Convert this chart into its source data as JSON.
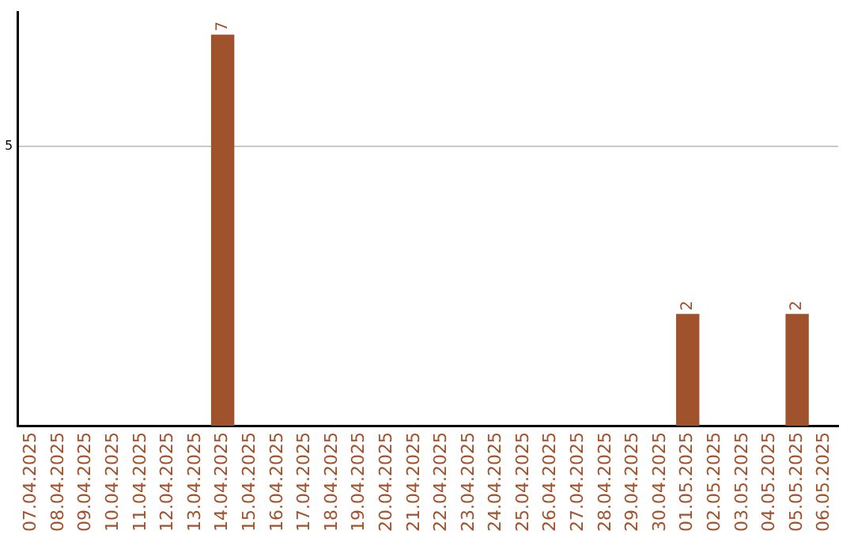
{
  "chart_data": {
    "type": "bar",
    "categories": [
      "07.04.2025",
      "08.04.2025",
      "09.04.2025",
      "10.04.2025",
      "11.04.2025",
      "12.04.2025",
      "13.04.2025",
      "14.04.2025",
      "15.04.2025",
      "16.04.2025",
      "17.04.2025",
      "18.04.2025",
      "19.04.2025",
      "20.04.2025",
      "21.04.2025",
      "22.04.2025",
      "23.04.2025",
      "24.04.2025",
      "25.04.2025",
      "26.04.2025",
      "27.04.2025",
      "28.04.2025",
      "29.04.2025",
      "30.04.2025",
      "01.05.2025",
      "02.05.2025",
      "03.05.2025",
      "04.05.2025",
      "05.05.2025",
      "06.05.2025"
    ],
    "values": [
      0,
      0,
      0,
      0,
      0,
      0,
      0,
      7,
      0,
      0,
      0,
      0,
      0,
      0,
      0,
      0,
      0,
      0,
      0,
      0,
      0,
      0,
      0,
      0,
      2,
      0,
      0,
      0,
      2,
      0
    ],
    "value_labels": [
      null,
      null,
      null,
      null,
      null,
      null,
      null,
      "7",
      null,
      null,
      null,
      null,
      null,
      null,
      null,
      null,
      null,
      null,
      null,
      null,
      null,
      null,
      null,
      null,
      "2",
      null,
      null,
      null,
      "2",
      null
    ],
    "color": "#a0522d",
    "ylim": [
      0,
      7.4
    ],
    "yticks": [
      5
    ],
    "grid": "y"
  }
}
